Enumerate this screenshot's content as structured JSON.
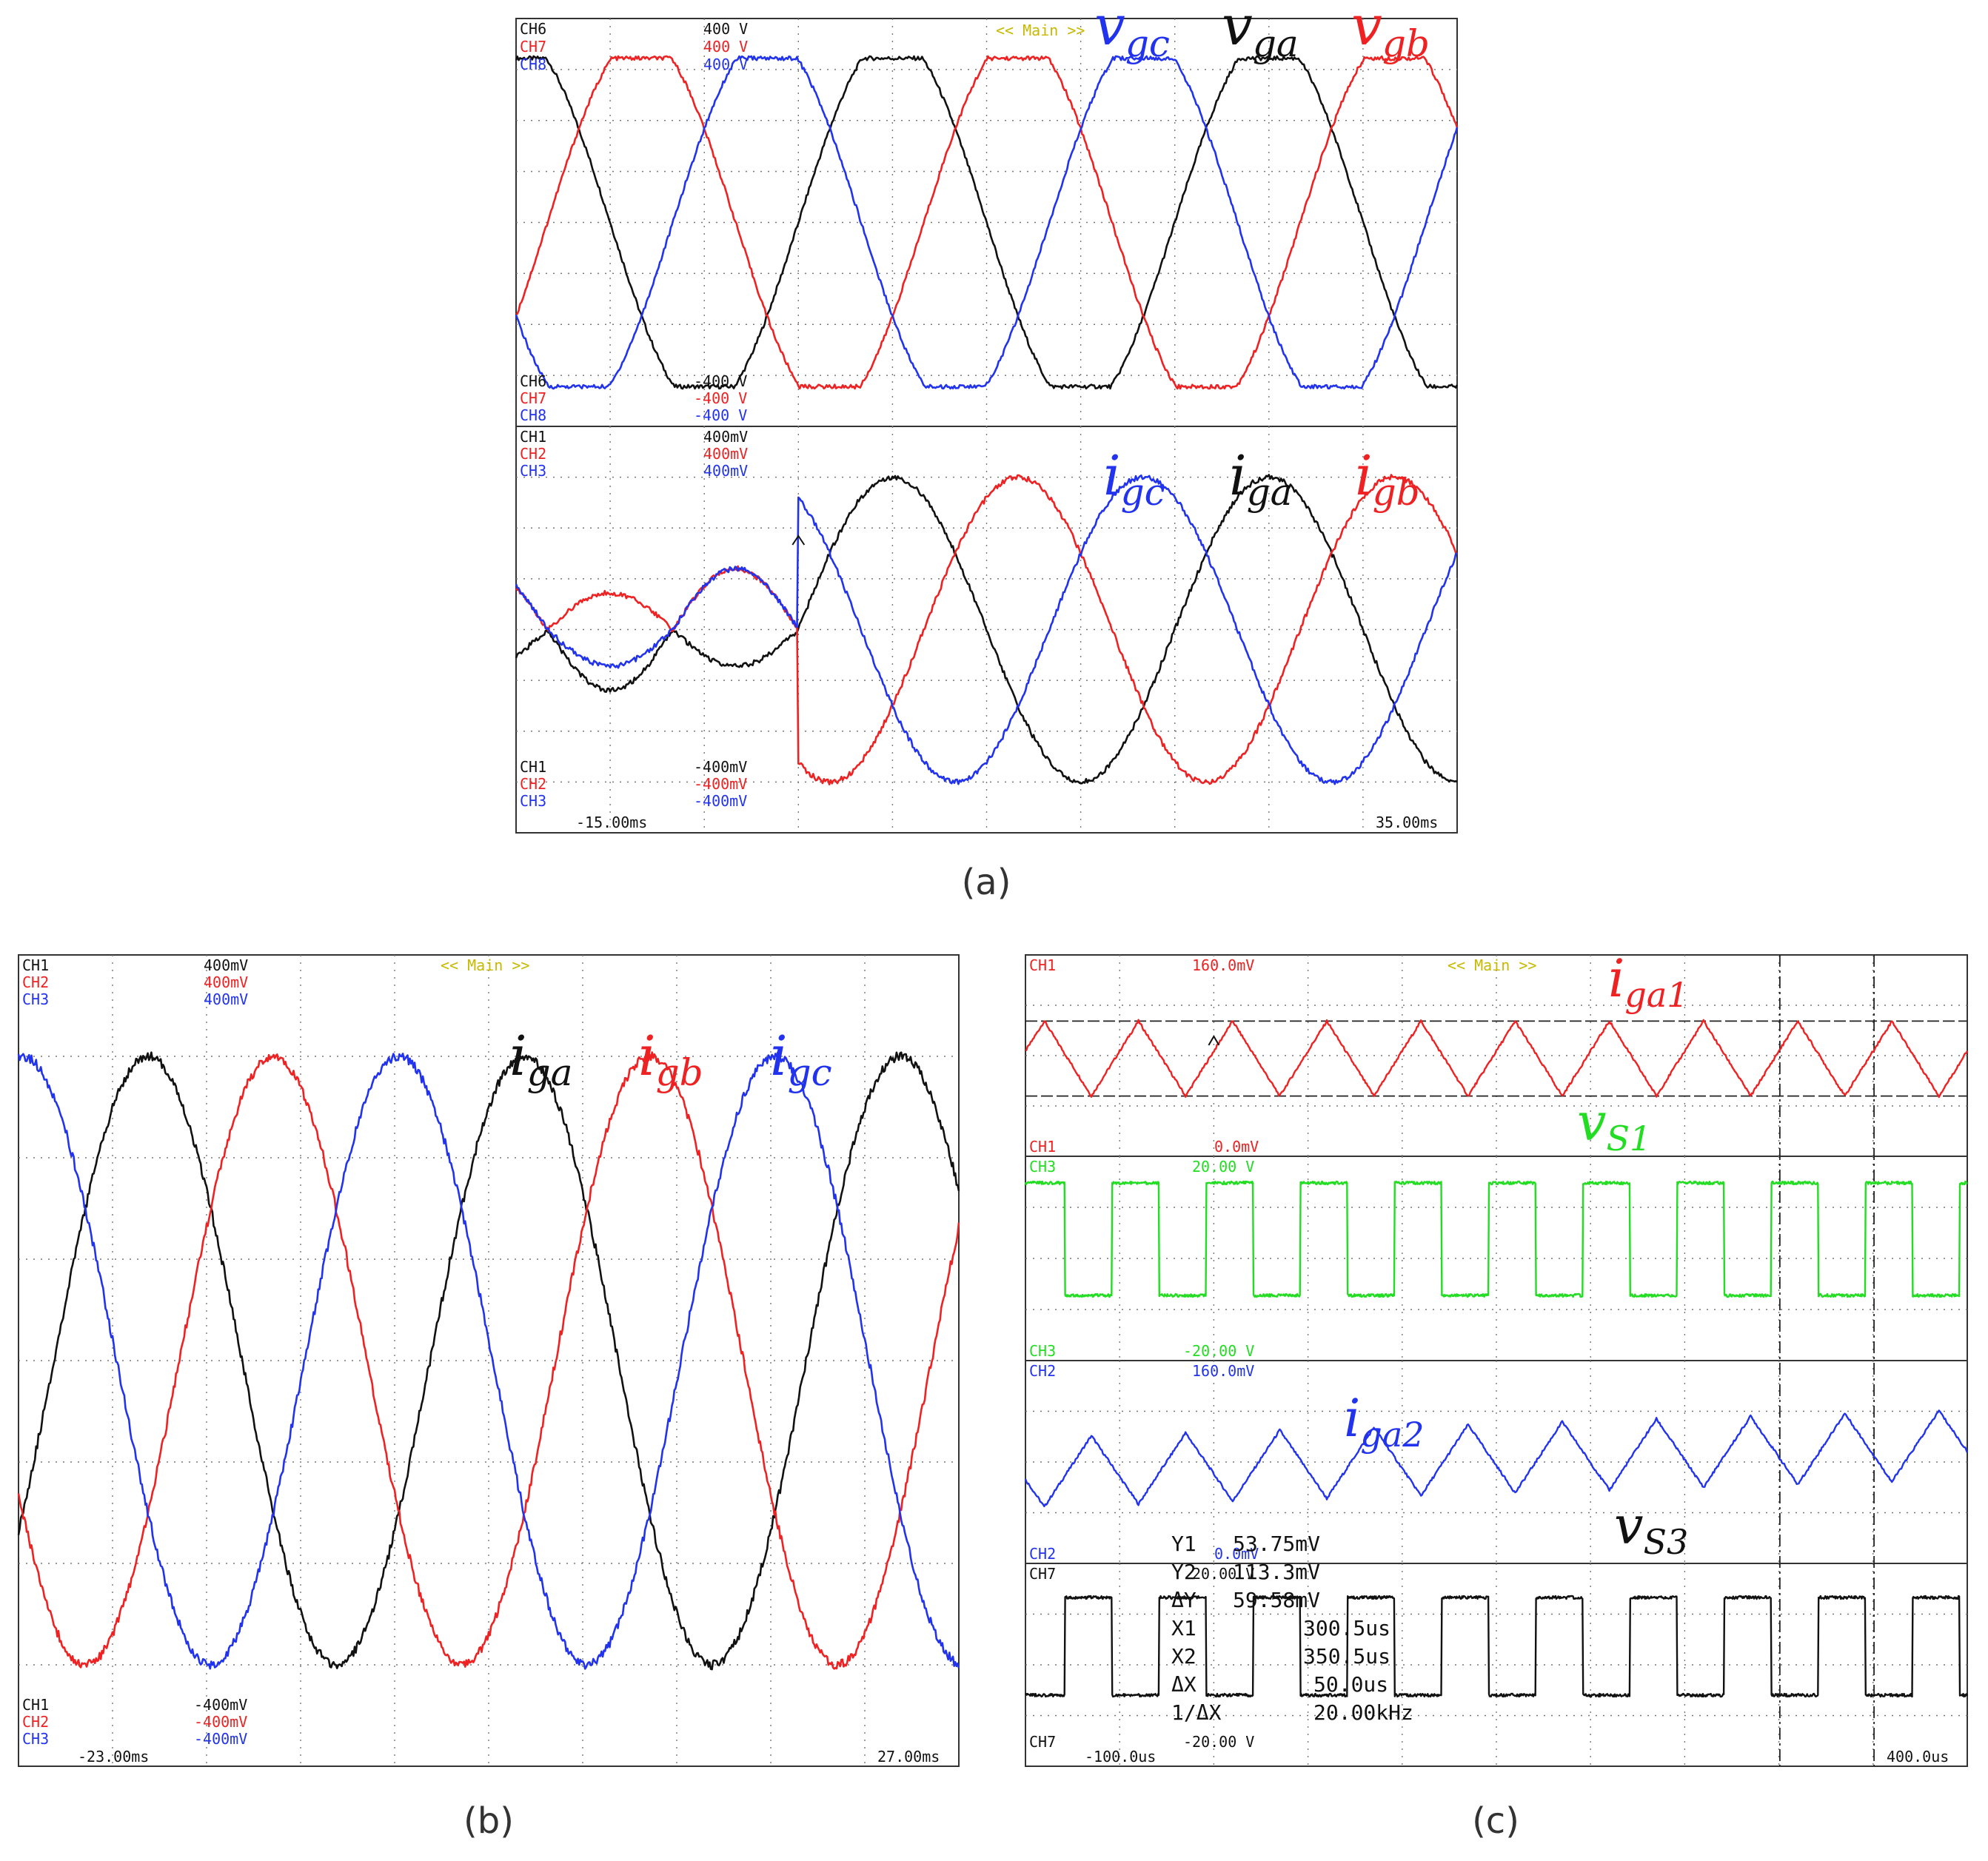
{
  "colors": {
    "ch_black": "#111111",
    "ch_red": "#ee2222",
    "ch_blue": "#2233ee",
    "ch_green": "#22dd22",
    "main_tag": "#c8b800",
    "grid": "#777777"
  },
  "panel_a": {
    "caption": "(a)",
    "main_tag": "<< Main >>",
    "top": {
      "ch_hi": [
        {
          "name": "CH6",
          "value": "400 V",
          "color": "#111111"
        },
        {
          "name": "CH7",
          "value": "400 V",
          "color": "#ee2222"
        },
        {
          "name": "CH8",
          "value": "400 V",
          "color": "#2233ee"
        }
      ],
      "ch_lo": [
        {
          "name": "CH6",
          "value": "-400 V",
          "color": "#111111"
        },
        {
          "name": "CH7",
          "value": "-400 V",
          "color": "#ee2222"
        },
        {
          "name": "CH8",
          "value": "-400 V",
          "color": "#2233ee"
        }
      ],
      "labels": {
        "vgc_base": "v",
        "vgc_sub": "gc",
        "vga_base": "v",
        "vga_sub": "ga",
        "vgb_base": "v",
        "vgb_sub": "gb"
      }
    },
    "bottom": {
      "ch_hi": [
        {
          "name": "CH1",
          "value": "400mV",
          "color": "#111111"
        },
        {
          "name": "CH2",
          "value": "400mV",
          "color": "#ee2222"
        },
        {
          "name": "CH3",
          "value": "400mV",
          "color": "#2233ee"
        }
      ],
      "ch_lo": [
        {
          "name": "CH1",
          "value": "-400mV",
          "color": "#111111"
        },
        {
          "name": "CH2",
          "value": "-400mV",
          "color": "#ee2222"
        },
        {
          "name": "CH3",
          "value": "-400mV",
          "color": "#2233ee"
        }
      ],
      "labels": {
        "igc_base": "i",
        "igc_sub": "gc",
        "iga_base": "i",
        "iga_sub": "ga",
        "igb_base": "i",
        "igb_sub": "gb"
      }
    },
    "time_start": "-15.00ms",
    "time_end": "35.00ms"
  },
  "panel_b": {
    "caption": "(b)",
    "main_tag": "<< Main >>",
    "ch_hi": [
      {
        "name": "CH1",
        "value": "400mV",
        "color": "#111111"
      },
      {
        "name": "CH2",
        "value": "400mV",
        "color": "#ee2222"
      },
      {
        "name": "CH3",
        "value": "400mV",
        "color": "#2233ee"
      }
    ],
    "ch_lo": [
      {
        "name": "CH1",
        "value": "-400mV",
        "color": "#111111"
      },
      {
        "name": "CH2",
        "value": "-400mV",
        "color": "#ee2222"
      },
      {
        "name": "CH3",
        "value": "-400mV",
        "color": "#2233ee"
      }
    ],
    "labels": {
      "iga_base": "i",
      "iga_sub": "ga",
      "igb_base": "i",
      "igb_sub": "gb",
      "igc_base": "i",
      "igc_sub": "gc"
    },
    "time_start": "-23.00ms",
    "time_end": "27.00ms"
  },
  "panel_c": {
    "caption": "(c)",
    "main_tag": "<< Main >>",
    "ch1_top": {
      "name": "CH1",
      "value": "160.0mV"
    },
    "ch1_bot": {
      "name": "CH1",
      "value": "0.0mV"
    },
    "ch3_top": {
      "name": "CH3",
      "value": "20.00 V"
    },
    "ch3_bot": {
      "name": "CH3",
      "value": "-20.00 V"
    },
    "ch2_top": {
      "name": "CH2",
      "value": "160.0mV"
    },
    "ch2_bot": {
      "name": "CH2",
      "value": "0.0mV"
    },
    "ch7_top": {
      "name": "CH7",
      "value": "20.00 V"
    },
    "ch7_bot": {
      "name": "CH7",
      "value": "-20.00 V"
    },
    "labels": {
      "iga1_base": "i",
      "iga1_sub": "ga1",
      "vs1_base": "v",
      "vs1_sub": "S1",
      "iga2_base": "i",
      "iga2_sub": "ga2",
      "vs3_base": "v",
      "vs3_sub": "S3"
    },
    "measure": [
      {
        "key": "Y1",
        "value": "53.75mV"
      },
      {
        "key": "Y2",
        "value": "113.3mV"
      },
      {
        "key": "ΔY",
        "value": "59.58mV"
      },
      {
        "key": "X1",
        "value": "300.5us"
      },
      {
        "key": "X2",
        "value": "350.5us"
      },
      {
        "key": "ΔX",
        "value": "50.0us"
      },
      {
        "key": "1/ΔX",
        "value": "20.00kHz"
      }
    ],
    "time_start": "-100.0us",
    "time_end": "400.0us"
  },
  "chart_data": [
    {
      "type": "line",
      "title": "",
      "panel": "a-top",
      "xlabel": "",
      "xlim": [
        -15,
        35
      ],
      "ylim": [
        -400,
        400
      ],
      "x_unit": "ms",
      "y_unit": "V",
      "series": [
        {
          "name": "v_ga",
          "color": "#111111",
          "amplitude": 350,
          "frequency_hz": 50,
          "phase_deg": 0
        },
        {
          "name": "v_gb",
          "color": "#ee2222",
          "amplitude": 350,
          "frequency_hz": 50,
          "phase_deg": -120
        },
        {
          "name": "v_gc",
          "color": "#2233ee",
          "amplitude": 350,
          "frequency_hz": 50,
          "phase_deg": 120
        }
      ]
    },
    {
      "type": "line",
      "title": "",
      "panel": "a-bottom",
      "xlabel": "",
      "xlim": [
        -15,
        35
      ],
      "ylim": [
        -400,
        400
      ],
      "x_unit": "ms",
      "y_unit": "mV",
      "step_time_ms": 0,
      "series": [
        {
          "name": "i_ga",
          "color": "#111111",
          "amplitude_before": 120,
          "amplitude_after": 300,
          "frequency_hz": 50,
          "phase_deg": 0
        },
        {
          "name": "i_gb",
          "color": "#ee2222",
          "amplitude_before": 120,
          "amplitude_after": 300,
          "frequency_hz": 50,
          "phase_deg": -120
        },
        {
          "name": "i_gc",
          "color": "#2233ee",
          "amplitude_before": 120,
          "amplitude_after": 300,
          "frequency_hz": 50,
          "phase_deg": 120
        }
      ]
    },
    {
      "type": "line",
      "title": "",
      "panel": "b",
      "xlabel": "",
      "xlim": [
        -23,
        27
      ],
      "ylim": [
        -400,
        400
      ],
      "x_unit": "ms",
      "y_unit": "mV",
      "series": [
        {
          "name": "i_ga",
          "color": "#111111",
          "amplitude": 300,
          "frequency_hz": 50,
          "phase_deg": 0
        },
        {
          "name": "i_gb",
          "color": "#ee2222",
          "amplitude": 300,
          "frequency_hz": 50,
          "phase_deg": -120
        },
        {
          "name": "i_gc",
          "color": "#2233ee",
          "amplitude": 300,
          "frequency_hz": 50,
          "phase_deg": 120
        }
      ]
    },
    {
      "type": "line",
      "title": "",
      "panel": "c",
      "xlabel": "",
      "xlim": [
        -100,
        400
      ],
      "x_unit": "us",
      "switching_frequency_khz": 20,
      "cursors_us": [
        300.5,
        350.5
      ],
      "series": [
        {
          "name": "i_ga1",
          "color": "#ee2222",
          "min_mv": 53.75,
          "max_mv": 113.3,
          "shape": "triangle"
        },
        {
          "name": "v_S1",
          "color": "#22dd22",
          "low_v": -7,
          "high_v": 12,
          "shape": "square"
        },
        {
          "name": "i_ga2",
          "color": "#2233ee",
          "min_mv": 40,
          "max_mv": 115,
          "shape": "triangle"
        },
        {
          "name": "v_S3",
          "color": "#111111",
          "low_v": -7,
          "high_v": 12,
          "shape": "square"
        }
      ]
    }
  ]
}
